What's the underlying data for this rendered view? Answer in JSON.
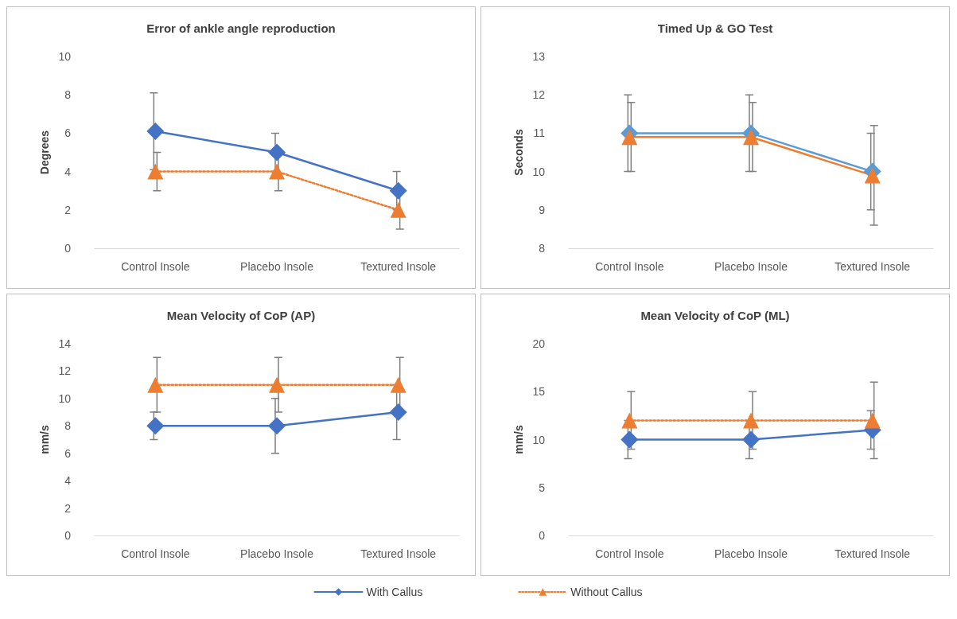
{
  "chart_data": [
    {
      "type": "line",
      "title": "Error of ankle angle reproduction",
      "ylabel": "Degrees",
      "categories": [
        "Control Insole",
        "Placebo Insole",
        "Textured Insole"
      ],
      "ylim": [
        0,
        10
      ],
      "yticks": [
        0,
        2,
        4,
        6,
        8,
        10
      ],
      "grid": false,
      "legend": "bottom",
      "series": [
        {
          "name": "With Callus",
          "color": "#4472c4",
          "marker": "diamond",
          "line_style": "solid",
          "values": [
            6.1,
            5,
            3
          ],
          "errors": [
            2,
            1,
            1
          ]
        },
        {
          "name": "Without Callus",
          "color": "#ed7d31",
          "marker": "triangle",
          "line_style": "dotted",
          "values": [
            4,
            4,
            2
          ],
          "errors": [
            1,
            1,
            1
          ]
        }
      ]
    },
    {
      "type": "line",
      "title": "Timed Up & GO Test",
      "ylabel": "Seconds",
      "categories": [
        "Control Insole",
        "Placebo Insole",
        "Textured Insole"
      ],
      "ylim": [
        8,
        13
      ],
      "yticks": [
        8,
        9,
        10,
        11,
        12,
        13
      ],
      "grid": false,
      "series": [
        {
          "color": "#5b9bd5",
          "marker": "diamond",
          "line_style": "solid",
          "values": [
            11,
            11,
            10
          ],
          "errors": [
            1,
            1,
            1
          ]
        },
        {
          "color": "#ed7d31",
          "marker": "triangle",
          "line_style": "solid",
          "values": [
            10.9,
            10.9,
            9.9
          ],
          "errors": [
            0.9,
            0.9,
            1.3
          ]
        }
      ]
    },
    {
      "type": "line",
      "title": "Mean Velocity of CoP (AP)",
      "ylabel": "mm/s",
      "categories": [
        "Control Insole",
        "Placebo Insole",
        "Textured Insole"
      ],
      "ylim": [
        0,
        14
      ],
      "yticks": [
        0,
        2,
        4,
        6,
        8,
        10,
        12,
        14
      ],
      "grid": false,
      "series": [
        {
          "color": "#4472c4",
          "marker": "diamond",
          "line_style": "solid",
          "values": [
            8,
            8,
            9
          ],
          "errors": [
            1,
            2,
            2
          ]
        },
        {
          "color": "#ed7d31",
          "marker": "triangle",
          "line_style": "dotted",
          "values": [
            11,
            11,
            11
          ],
          "errors": [
            2,
            2,
            2
          ]
        }
      ]
    },
    {
      "type": "line",
      "title": "Mean Velocity of CoP (ML)",
      "ylabel": "mm/s",
      "categories": [
        "Control Insole",
        "Placebo Insole",
        "Textured Insole"
      ],
      "ylim": [
        0,
        20
      ],
      "yticks": [
        0,
        5,
        10,
        15,
        20
      ],
      "grid": false,
      "series": [
        {
          "color": "#4472c4",
          "marker": "diamond",
          "line_style": "solid",
          "values": [
            10,
            10,
            11
          ],
          "errors": [
            2,
            2,
            2
          ]
        },
        {
          "color": "#ed7d31",
          "marker": "triangle",
          "line_style": "dotted",
          "values": [
            12,
            12,
            12
          ],
          "errors": [
            3,
            3,
            4
          ]
        }
      ]
    }
  ]
}
